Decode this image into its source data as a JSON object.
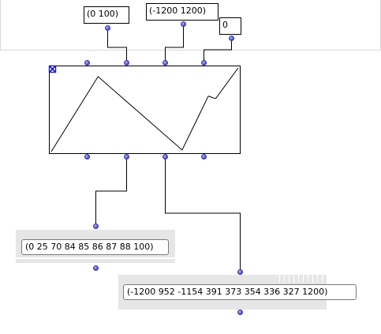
{
  "inputs": {
    "x_range": "(0 100)",
    "y_range": "(-1200 1200)",
    "decimals": "0"
  },
  "outputs": {
    "x_points": "(0 25 70 84 85 86 87 88 100)",
    "y_points": "(-1200 952 -1154 391 373 354 336 327 1200)"
  },
  "bpf": {
    "x": [
      0,
      25,
      70,
      84,
      85,
      86,
      87,
      88,
      100
    ],
    "y": [
      -1200,
      952,
      -1154,
      391,
      373,
      354,
      336,
      327,
      1200
    ],
    "x_range": [
      0,
      100
    ],
    "y_range": [
      -1200,
      1200
    ]
  },
  "colors": {
    "port": "#5555d8",
    "selection_marker": "#1a1ad0",
    "panel": "#e6e6e6"
  }
}
